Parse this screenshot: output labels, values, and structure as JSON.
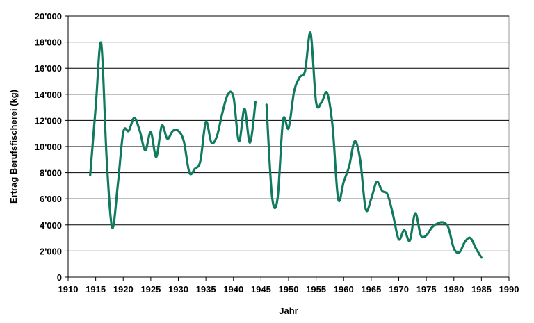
{
  "chart_data": {
    "type": "line",
    "title": "",
    "xlabel": "Jahr",
    "ylabel": "Ertrag Berufsfischerei (kg)",
    "xlim": [
      1910,
      1990
    ],
    "ylim": [
      0,
      20000
    ],
    "x_ticks": [
      "1910",
      "1915",
      "1920",
      "1925",
      "1930",
      "1935",
      "1940",
      "1945",
      "1950",
      "1955",
      "1960",
      "1965",
      "1970",
      "1975",
      "1980",
      "1985",
      "1990"
    ],
    "y_ticks": [
      "0",
      "2'000",
      "4'000",
      "6'000",
      "8'000",
      "10'000",
      "12'000",
      "14'000",
      "16'000",
      "18'000",
      "20'000"
    ],
    "grid": true,
    "line_color": "#117a5e",
    "series": [
      {
        "name": "",
        "segments": [
          [
            [
              1914,
              7800
            ],
            [
              1915,
              13000
            ],
            [
              1916,
              17900
            ],
            [
              1917,
              9000
            ],
            [
              1918,
              3800
            ],
            [
              1919,
              7000
            ],
            [
              1920,
              11100
            ],
            [
              1921,
              11200
            ],
            [
              1922,
              12200
            ],
            [
              1923,
              11200
            ],
            [
              1924,
              9700
            ],
            [
              1925,
              11100
            ],
            [
              1926,
              9200
            ],
            [
              1927,
              11600
            ],
            [
              1928,
              10600
            ],
            [
              1929,
              11200
            ],
            [
              1930,
              11200
            ],
            [
              1931,
              10400
            ],
            [
              1932,
              8000
            ],
            [
              1933,
              8300
            ],
            [
              1934,
              8900
            ],
            [
              1935,
              11900
            ],
            [
              1936,
              10300
            ],
            [
              1937,
              10800
            ],
            [
              1938,
              12600
            ],
            [
              1939,
              14000
            ],
            [
              1940,
              13800
            ],
            [
              1941,
              10400
            ],
            [
              1942,
              12900
            ],
            [
              1943,
              10300
            ],
            [
              1944,
              13400
            ]
          ],
          [
            [
              1946,
              13200
            ],
            [
              1947,
              6200
            ],
            [
              1948,
              6000
            ],
            [
              1949,
              12000
            ],
            [
              1950,
              11400
            ],
            [
              1951,
              14200
            ],
            [
              1952,
              15300
            ],
            [
              1953,
              15800
            ],
            [
              1954,
              18700
            ],
            [
              1955,
              13400
            ],
            [
              1956,
              13400
            ],
            [
              1957,
              14100
            ],
            [
              1958,
              11500
            ],
            [
              1959,
              6000
            ],
            [
              1960,
              7300
            ],
            [
              1961,
              8500
            ],
            [
              1962,
              10400
            ],
            [
              1963,
              9000
            ],
            [
              1964,
              5200
            ],
            [
              1965,
              6000
            ],
            [
              1966,
              7300
            ],
            [
              1967,
              6600
            ],
            [
              1968,
              6300
            ],
            [
              1969,
              4700
            ],
            [
              1970,
              2900
            ],
            [
              1971,
              3600
            ],
            [
              1972,
              2800
            ],
            [
              1973,
              4900
            ],
            [
              1974,
              3200
            ],
            [
              1975,
              3200
            ],
            [
              1976,
              3800
            ],
            [
              1977,
              4100
            ],
            [
              1978,
              4200
            ],
            [
              1979,
              3800
            ],
            [
              1980,
              2200
            ],
            [
              1981,
              1900
            ],
            [
              1982,
              2700
            ],
            [
              1983,
              3000
            ],
            [
              1984,
              2200
            ],
            [
              1985,
              1500
            ]
          ]
        ]
      }
    ]
  }
}
